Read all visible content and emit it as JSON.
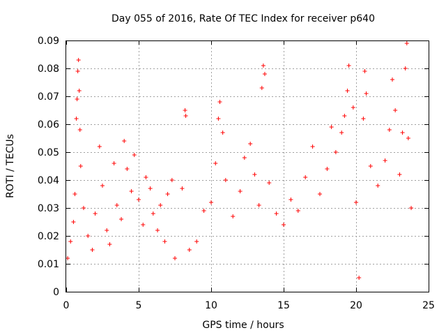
{
  "chart_data": {
    "type": "scatter",
    "title": "Day 055 of 2016, Rate Of TEC Index for receiver p640",
    "xlabel": "GPS time / hours",
    "ylabel": "ROTI / TECUs",
    "xlim": [
      0,
      25
    ],
    "ylim": [
      0,
      0.09
    ],
    "xticks": [
      0,
      5,
      10,
      15,
      20,
      25
    ],
    "xtick_labels": [
      "0",
      "5",
      "10",
      "15",
      "20",
      "25"
    ],
    "yticks": [
      0,
      0.01,
      0.02,
      0.03,
      0.04,
      0.05,
      0.06,
      0.07,
      0.08,
      0.09
    ],
    "ytick_labels": [
      "0",
      "0.01",
      "0.02",
      "0.03",
      "0.04",
      "0.05",
      "0.06",
      "0.07",
      "0.08",
      "0.09"
    ],
    "grid": true,
    "marker": "plus",
    "color": "#ff0000",
    "series": [
      {
        "points": [
          [
            0.1,
            0.012
          ],
          [
            0.3,
            0.018
          ],
          [
            0.5,
            0.025
          ],
          [
            0.6,
            0.035
          ],
          [
            0.7,
            0.062
          ],
          [
            0.75,
            0.069
          ],
          [
            0.8,
            0.079
          ],
          [
            0.85,
            0.083
          ],
          [
            0.9,
            0.072
          ],
          [
            0.95,
            0.058
          ],
          [
            1.0,
            0.045
          ],
          [
            1.2,
            0.03
          ],
          [
            1.5,
            0.02
          ],
          [
            1.8,
            0.015
          ],
          [
            2.0,
            0.028
          ],
          [
            2.3,
            0.052
          ],
          [
            2.5,
            0.038
          ],
          [
            2.8,
            0.022
          ],
          [
            3.0,
            0.017
          ],
          [
            3.3,
            0.046
          ],
          [
            3.5,
            0.031
          ],
          [
            3.8,
            0.026
          ],
          [
            4.0,
            0.054
          ],
          [
            4.2,
            0.044
          ],
          [
            4.5,
            0.036
          ],
          [
            4.7,
            0.049
          ],
          [
            5.0,
            0.033
          ],
          [
            5.3,
            0.024
          ],
          [
            5.5,
            0.041
          ],
          [
            5.8,
            0.037
          ],
          [
            6.0,
            0.028
          ],
          [
            6.3,
            0.022
          ],
          [
            6.5,
            0.031
          ],
          [
            6.8,
            0.018
          ],
          [
            7.0,
            0.035
          ],
          [
            7.3,
            0.04
          ],
          [
            7.5,
            0.012
          ],
          [
            8.0,
            0.037
          ],
          [
            8.2,
            0.065
          ],
          [
            8.25,
            0.063
          ],
          [
            8.5,
            0.015
          ],
          [
            9.0,
            0.018
          ],
          [
            9.5,
            0.029
          ],
          [
            10.0,
            0.032
          ],
          [
            10.3,
            0.046
          ],
          [
            10.5,
            0.062
          ],
          [
            10.6,
            0.068
          ],
          [
            10.8,
            0.057
          ],
          [
            11.0,
            0.04
          ],
          [
            11.5,
            0.027
          ],
          [
            12.0,
            0.036
          ],
          [
            12.3,
            0.048
          ],
          [
            12.7,
            0.053
          ],
          [
            13.0,
            0.042
          ],
          [
            13.3,
            0.031
          ],
          [
            13.5,
            0.073
          ],
          [
            13.6,
            0.081
          ],
          [
            13.7,
            0.078
          ],
          [
            14.0,
            0.039
          ],
          [
            14.5,
            0.028
          ],
          [
            15.0,
            0.024
          ],
          [
            15.5,
            0.033
          ],
          [
            16.0,
            0.029
          ],
          [
            16.5,
            0.041
          ],
          [
            17.0,
            0.052
          ],
          [
            17.5,
            0.035
          ],
          [
            18.0,
            0.044
          ],
          [
            18.3,
            0.059
          ],
          [
            18.6,
            0.05
          ],
          [
            19.0,
            0.057
          ],
          [
            19.2,
            0.063
          ],
          [
            19.4,
            0.072
          ],
          [
            19.5,
            0.081
          ],
          [
            19.8,
            0.066
          ],
          [
            20.0,
            0.032
          ],
          [
            20.2,
            0.005
          ],
          [
            20.5,
            0.062
          ],
          [
            20.6,
            0.079
          ],
          [
            20.7,
            0.071
          ],
          [
            21.0,
            0.045
          ],
          [
            21.5,
            0.038
          ],
          [
            22.0,
            0.047
          ],
          [
            22.3,
            0.058
          ],
          [
            22.5,
            0.076
          ],
          [
            22.7,
            0.065
          ],
          [
            23.0,
            0.042
          ],
          [
            23.2,
            0.057
          ],
          [
            23.4,
            0.08
          ],
          [
            23.5,
            0.089
          ],
          [
            23.6,
            0.055
          ],
          [
            23.8,
            0.03
          ]
        ]
      }
    ]
  }
}
